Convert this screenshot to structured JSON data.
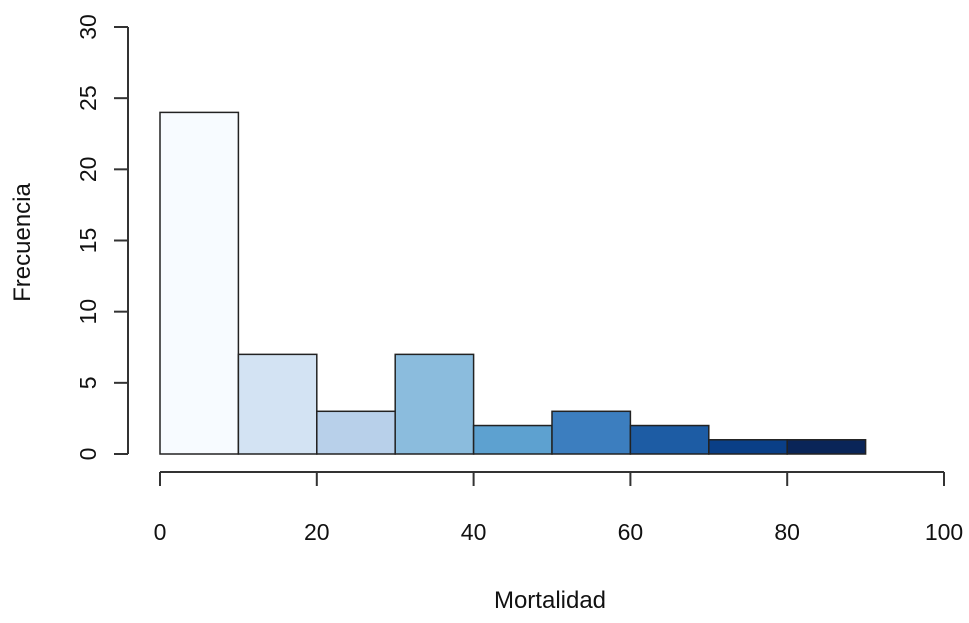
{
  "chart_data": {
    "type": "bar",
    "title": "",
    "xlabel": "Mortalidad",
    "ylabel": "Frecuencia",
    "xlim": [
      0,
      100
    ],
    "ylim": [
      0,
      30
    ],
    "xticks": [
      0,
      20,
      40,
      60,
      80,
      100
    ],
    "xtick_labels": [
      "0",
      "20",
      "40",
      "60",
      "80",
      "100"
    ],
    "yticks": [
      0,
      5,
      10,
      15,
      20,
      25,
      30
    ],
    "ytick_labels": [
      "0",
      "5",
      "10",
      "15",
      "20",
      "25",
      "30"
    ],
    "bins": [
      {
        "from": 0,
        "to": 10,
        "count": 24,
        "color": "#F7FBFF"
      },
      {
        "from": 10,
        "to": 20,
        "count": 7,
        "color": "#D3E3F3"
      },
      {
        "from": 20,
        "to": 30,
        "count": 3,
        "color": "#B8D0EA"
      },
      {
        "from": 30,
        "to": 40,
        "count": 7,
        "color": "#8BBCDD"
      },
      {
        "from": 40,
        "to": 50,
        "count": 2,
        "color": "#5DA1D0"
      },
      {
        "from": 50,
        "to": 60,
        "count": 3,
        "color": "#3C7EBF"
      },
      {
        "from": 60,
        "to": 70,
        "count": 2,
        "color": "#1D5CA4"
      },
      {
        "from": 70,
        "to": 80,
        "count": 1,
        "color": "#0A3F87"
      },
      {
        "from": 80,
        "to": 90,
        "count": 1,
        "color": "#0A2558"
      }
    ],
    "grid": false,
    "legend": "none"
  }
}
